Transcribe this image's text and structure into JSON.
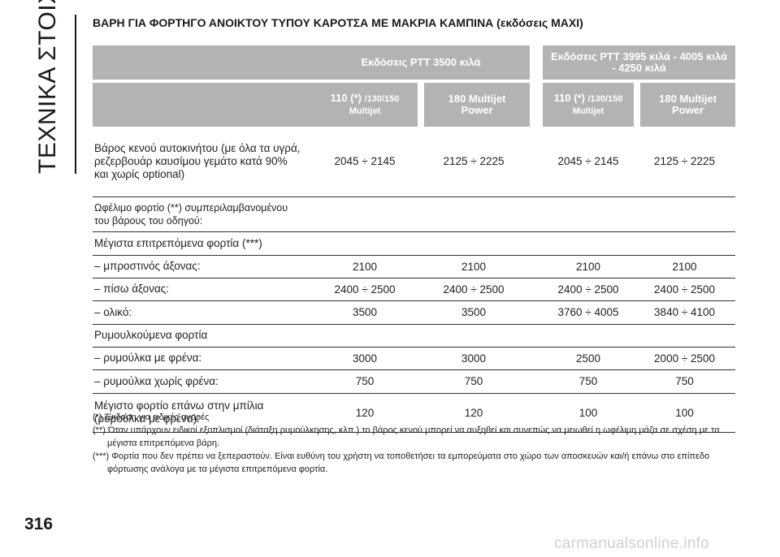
{
  "side_tab": {
    "label": "ΤΕΧΝΙΚΑ ΣΤΟΙΧΕΙΑ"
  },
  "title": "ΒΑΡΗ ΓΙΑ ΦΟΡΤΗΓΟ ΑΝΟΙΚΤΟΥ ΤΥΠΟΥ ΚΑΡΟΤΣΑ ΜΕ ΜΑΚΡΙΑ ΚΑΜΠΙΝΑ (εκδόσεις MAXI)",
  "table": {
    "groups": [
      {
        "label": "Εκδόσεις PTT 3500 κιλά"
      },
      {
        "label_line1": "Εκδόσεις PTT 3995 κιλά - 4005 κιλά",
        "label_line2": "- 4250 κιλά"
      }
    ],
    "subheaders": [
      {
        "main": "110 (*) ",
        "small": "/130/150",
        "line2": "Multijet"
      },
      {
        "main": "180 Multijet",
        "small": "",
        "line2": "Power"
      },
      {
        "main": "110 (*) ",
        "small": "/130/150",
        "line2": "Multijet"
      },
      {
        "main": "180 Multijet",
        "small": "",
        "line2": "Power"
      }
    ],
    "rows": [
      {
        "label_lines": [
          "Βάρος κενού αυτοκινήτου (με όλα τα υγρά,",
          "ρεζερβουάρ καυσίμου γεμάτο κατά 90%",
          "και χωρίς optional)"
        ],
        "values": [
          "2045 ÷ 2145",
          "2125 ÷ 2225",
          "2045 ÷ 2145",
          "2125 ÷ 2225"
        ]
      },
      {
        "label_lines": [
          "Ωφέλιμο φορτίο (**) συμπεριλαμβανομένου",
          "του βάρους του οδηγού:"
        ],
        "values": [
          "",
          "",
          "",
          ""
        ]
      },
      {
        "label_lines": [
          "Μέγιστα επιτρεπόμενα φορτία (***)"
        ],
        "values": [
          "",
          "",
          "",
          ""
        ]
      },
      {
        "label_lines": [
          "– μπροστινός άξονας:"
        ],
        "values": [
          "2100",
          "2100",
          "2100",
          "2100"
        ]
      },
      {
        "label_lines": [
          "– πίσω άξονας:"
        ],
        "values": [
          "2400 ÷ 2500",
          "2400 ÷ 2500",
          "2400 ÷ 2500",
          "2400 ÷ 2500"
        ]
      },
      {
        "label_lines": [
          "– ολικό:"
        ],
        "values": [
          "3500",
          "3500",
          "3760 ÷ 4005",
          "3840 ÷ 4100"
        ]
      },
      {
        "label_lines": [
          "Ρυμουλκούμενα φορτία"
        ],
        "values": [
          "",
          "",
          "",
          ""
        ]
      },
      {
        "label_lines": [
          "– ρυμούλκα με φρένα:"
        ],
        "values": [
          "3000",
          "3000",
          "2500",
          "2000 ÷ 2500"
        ]
      },
      {
        "label_lines": [
          "– ρυμούλκα χωρίς φρένα:"
        ],
        "values": [
          "750",
          "750",
          "750",
          "750"
        ]
      },
      {
        "label_lines": [
          "Μέγιστο φορτίο επάνω στην μπίλια",
          "(ρυμούλκα με φρένα):"
        ],
        "values": [
          "120",
          "120",
          "100",
          "100"
        ]
      }
    ]
  },
  "footnotes": [
    {
      "line1": "(*) Έκδοση για ειδικές αγορές",
      "line2": ""
    },
    {
      "line1": "(**) Όταν υπάρχουν ειδικοί εξοπλισμοί (διάταξη ρυμούλκησης, κλπ.) το βάρος κενού μπορεί να αυξηθεί και συνεπώς να μειωθεί η ωφέλιμη μάζα σε σχέση με τα",
      "line2": "μέγιστα επιτρεπόμενα βάρη."
    },
    {
      "line1": "(***) Φορτία που δεν πρέπει να ξεπεραστούν. Είναι ευθύνη του χρήστη να τοποθετήσει τα εμπορεύματα στο χώρο των αποσκευών και/ή επάνω στο επίπεδο",
      "line2": "φόρτωσης ανάλογα με τα μέγιστα επιτρεπόμενα φορτία."
    }
  ],
  "page_number": "316",
  "watermark": "carmanualsonline.info"
}
